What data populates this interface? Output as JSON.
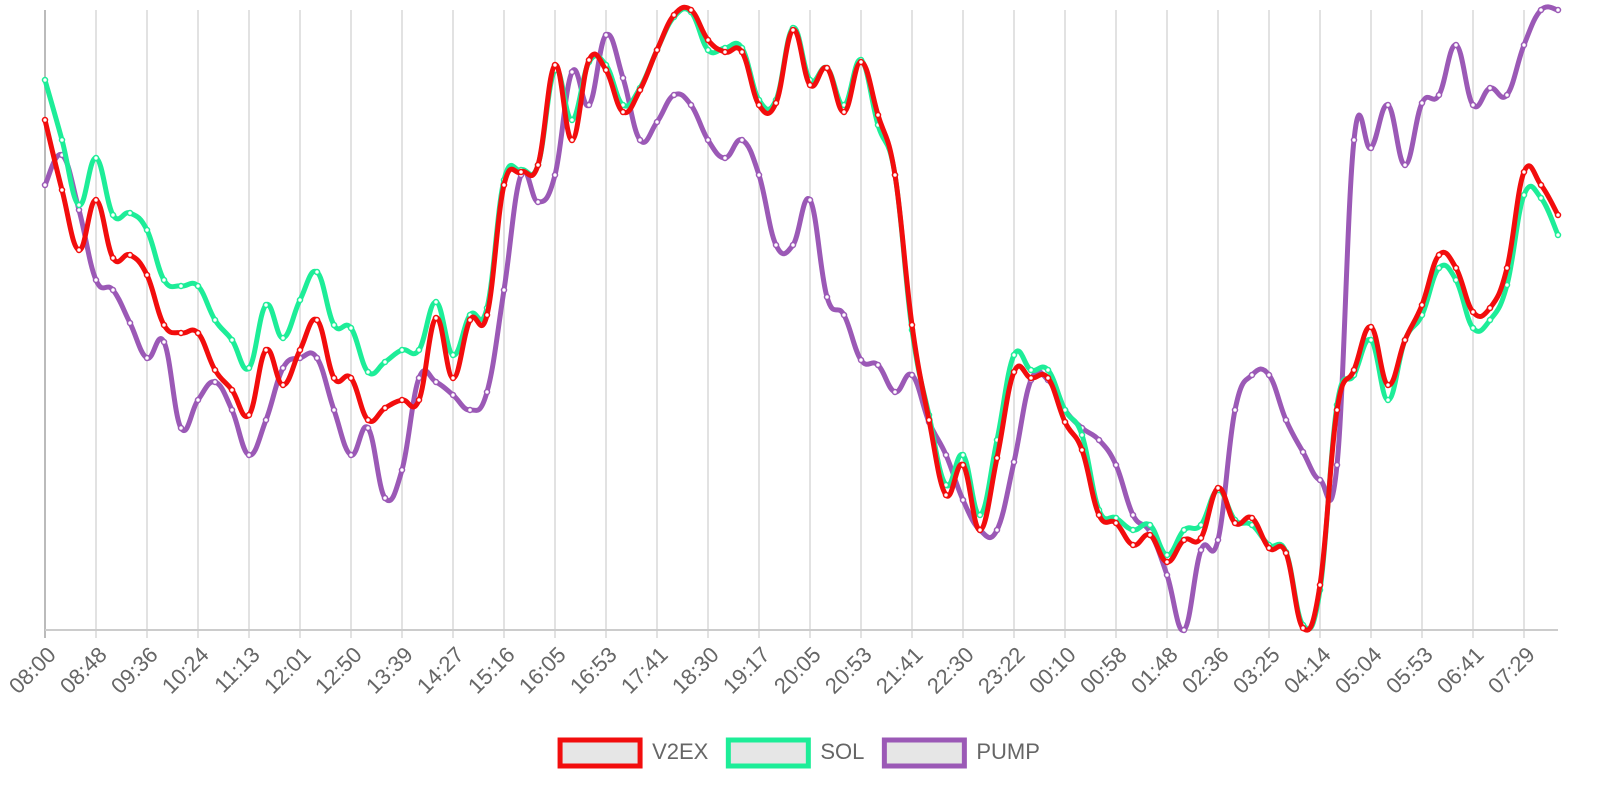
{
  "chart_data": {
    "type": "line",
    "categories": [
      "08:00",
      null,
      null,
      "08:48",
      null,
      null,
      "09:36",
      null,
      null,
      "10:24",
      null,
      null,
      "11:13",
      null,
      null,
      "12:01",
      null,
      null,
      "12:50",
      null,
      null,
      "13:39",
      null,
      null,
      "14:27",
      null,
      null,
      "15:16",
      null,
      null,
      "16:05",
      null,
      null,
      "16:53",
      null,
      null,
      "17:41",
      null,
      null,
      "18:30",
      null,
      null,
      "19:17",
      null,
      null,
      "20:05",
      null,
      null,
      "20:53",
      null,
      null,
      "21:41",
      null,
      null,
      "22:30",
      null,
      null,
      "23:22",
      null,
      null,
      "00:10",
      null,
      null,
      "00:58",
      null,
      null,
      "01:48",
      null,
      null,
      "02:36",
      null,
      null,
      "03:25",
      null,
      null,
      "04:14",
      null,
      null,
      "05:04",
      null,
      null,
      "05:53",
      null,
      null,
      "06:41",
      null,
      null,
      "07:29",
      null,
      null
    ],
    "series": [
      {
        "name": "V2EX",
        "color": "#f20d0d",
        "values": [
          510,
          440,
          380,
          430,
          372,
          375,
          355,
          305,
          297,
          297,
          260,
          240,
          215,
          280,
          245,
          280,
          310,
          252,
          252,
          210,
          222,
          230,
          230,
          312,
          252,
          310,
          315,
          445,
          458,
          465,
          565,
          490,
          570,
          560,
          518,
          540,
          580,
          615,
          620,
          590,
          578,
          578,
          525,
          527,
          600,
          545,
          562,
          518,
          568,
          515,
          455,
          305,
          210,
          135,
          165,
          100,
          172,
          258,
          252,
          252,
          208,
          180,
          115,
          107,
          85,
          95,
          68,
          90,
          92,
          142,
          107,
          112,
          82,
          77,
          2,
          45,
          220,
          260,
          303,
          245,
          290,
          325,
          375,
          362,
          318,
          322,
          362,
          458,
          445,
          415
        ]
      },
      {
        "name": "SOL",
        "color": "#1ded98",
        "values": [
          550,
          490,
          425,
          472,
          415,
          417,
          400,
          350,
          344,
          344,
          310,
          290,
          262,
          325,
          292,
          330,
          358,
          305,
          302,
          258,
          268,
          280,
          280,
          328,
          275,
          315,
          322,
          450,
          460,
          465,
          560,
          510,
          568,
          565,
          525,
          542,
          580,
          613,
          618,
          580,
          582,
          582,
          530,
          530,
          602,
          550,
          562,
          525,
          570,
          505,
          455,
          300,
          215,
          145,
          175,
          115,
          190,
          275,
          260,
          260,
          220,
          195,
          120,
          112,
          100,
          105,
          75,
          100,
          105,
          140,
          110,
          105,
          85,
          78,
          5,
          40,
          225,
          255,
          290,
          230,
          290,
          315,
          362,
          350,
          302,
          310,
          345,
          435,
          432,
          395
        ]
      },
      {
        "name": "PUMP",
        "color": "#9b59b6",
        "values": [
          445,
          475,
          420,
          350,
          340,
          307,
          272,
          288,
          202,
          230,
          248,
          220,
          175,
          210,
          262,
          272,
          272,
          220,
          175,
          202,
          132,
          160,
          252,
          248,
          235,
          220,
          238,
          340,
          455,
          428,
          455,
          558,
          525,
          595,
          552,
          490,
          508,
          535,
          525,
          490,
          472,
          490,
          455,
          385,
          385,
          430,
          333,
          315,
          270,
          265,
          238,
          255,
          208,
          175,
          130,
          100,
          100,
          168,
          250,
          250,
          220,
          202,
          190,
          165,
          115,
          98,
          55,
          0,
          80,
          90,
          220,
          255,
          255,
          210,
          178,
          150,
          165,
          490,
          482,
          525,
          465,
          527,
          535,
          585,
          525,
          542,
          535,
          585,
          620,
          620
        ]
      }
    ],
    "ylim": [
      0,
      620
    ],
    "grid": true,
    "legend": "bottom"
  }
}
